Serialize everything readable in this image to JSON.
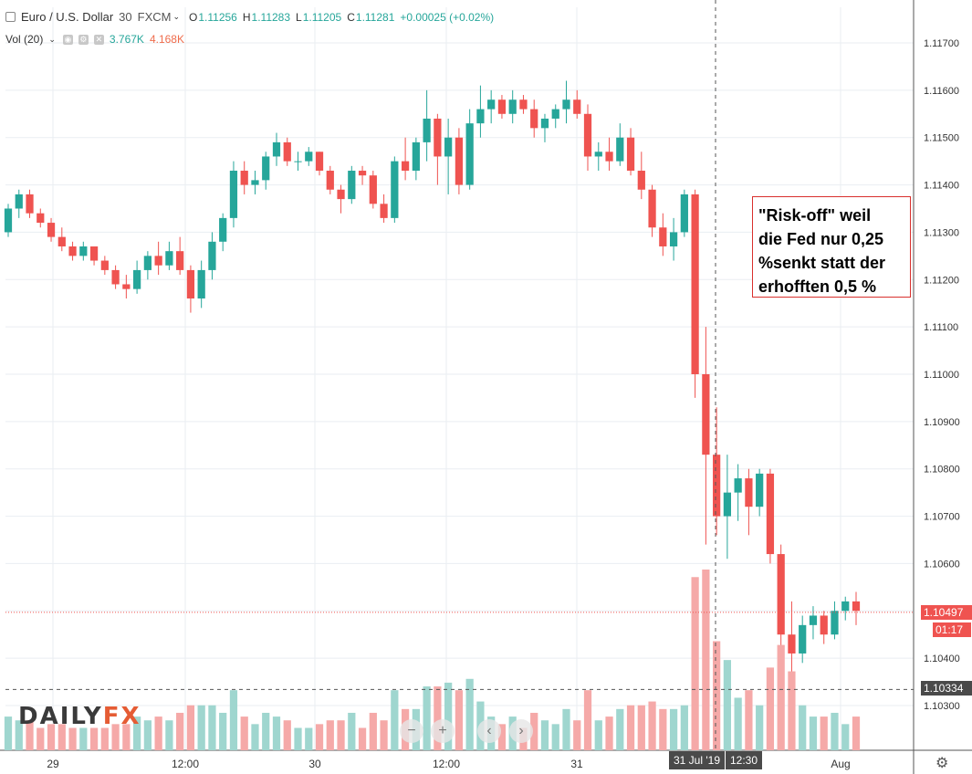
{
  "legend": {
    "symbol": "Euro / U.S. Dollar",
    "interval": "30",
    "source": "FXCM",
    "o_label": "O",
    "o_value": "1.11256",
    "h_label": "H",
    "h_value": "1.11283",
    "l_label": "L",
    "l_value": "1.11205",
    "c_label": "C",
    "c_value": "1.11281",
    "change": "+0.00025 (+0.02%)",
    "vol_label": "Vol (20)",
    "vol_value1": "3.767K",
    "vol_value2": "4.168K"
  },
  "annotation": {
    "text": "\"Risk-off\" weil\ndie Fed nur 0,25\n%senkt statt der\nerhofften 0,5 %"
  },
  "logo": {
    "part1": "DAILY",
    "part2": "FX"
  },
  "current_price_tag": "1.10497",
  "countdown_tag": "01:17",
  "crosshair_price_tag": "1.10334",
  "crosshair_date_tag": "31 Jul '19",
  "crosshair_time_tag": "12:30",
  "colors": {
    "up": "#26a69a",
    "down": "#ef5350",
    "vol_up": "#9fd6cf",
    "vol_down": "#f5a9a8",
    "grid": "#eaeef2",
    "annotation_border": "#d9302d"
  },
  "chart_data": {
    "type": "candlestick",
    "title": "Euro / U.S. Dollar",
    "ylim": [
      1.1025,
      1.1175
    ],
    "y_ticks": [
      "1.11700",
      "1.11600",
      "1.11500",
      "1.11400",
      "1.11300",
      "1.11200",
      "1.11100",
      "1.11000",
      "1.10900",
      "1.10800",
      "1.10700",
      "1.10600",
      "1.10500",
      "1.10400",
      "1.10300"
    ],
    "x_ticks": [
      "29",
      "12:00",
      "30",
      "12:00",
      "31",
      "Aug"
    ],
    "grid": true,
    "candles": [
      [
        1.113,
        1.1136,
        1.1129,
        1.1135
      ],
      [
        1.1135,
        1.1139,
        1.1133,
        1.1138
      ],
      [
        1.1138,
        1.1139,
        1.1133,
        1.1134
      ],
      [
        1.1134,
        1.1135,
        1.1131,
        1.1132
      ],
      [
        1.1132,
        1.1133,
        1.1128,
        1.1129
      ],
      [
        1.1129,
        1.1131,
        1.1126,
        1.1127
      ],
      [
        1.1127,
        1.1128,
        1.1124,
        1.1125
      ],
      [
        1.1125,
        1.1128,
        1.1124,
        1.1127
      ],
      [
        1.1127,
        1.1127,
        1.1123,
        1.1124
      ],
      [
        1.1124,
        1.1125,
        1.1121,
        1.1122
      ],
      [
        1.1122,
        1.1123,
        1.1118,
        1.1119
      ],
      [
        1.1119,
        1.1121,
        1.1116,
        1.1118
      ],
      [
        1.1118,
        1.1124,
        1.1117,
        1.1122
      ],
      [
        1.1122,
        1.1126,
        1.112,
        1.1125
      ],
      [
        1.1125,
        1.1128,
        1.1121,
        1.1123
      ],
      [
        1.1123,
        1.1128,
        1.1122,
        1.1126
      ],
      [
        1.1126,
        1.1129,
        1.1121,
        1.1122
      ],
      [
        1.1122,
        1.1123,
        1.1113,
        1.1116
      ],
      [
        1.1116,
        1.1124,
        1.1114,
        1.1122
      ],
      [
        1.1122,
        1.113,
        1.112,
        1.1128
      ],
      [
        1.1128,
        1.1134,
        1.1126,
        1.1133
      ],
      [
        1.1133,
        1.1145,
        1.1131,
        1.1143
      ],
      [
        1.1143,
        1.1145,
        1.1138,
        1.114
      ],
      [
        1.114,
        1.1143,
        1.1138,
        1.1141
      ],
      [
        1.1141,
        1.1147,
        1.1139,
        1.1146
      ],
      [
        1.1146,
        1.1151,
        1.1144,
        1.1149
      ],
      [
        1.1149,
        1.115,
        1.1144,
        1.1145
      ],
      [
        1.1145,
        1.1147,
        1.1143,
        1.1145
      ],
      [
        1.1145,
        1.1148,
        1.1144,
        1.1147
      ],
      [
        1.1147,
        1.1147,
        1.1142,
        1.1143
      ],
      [
        1.1143,
        1.1144,
        1.1138,
        1.1139
      ],
      [
        1.1139,
        1.114,
        1.1134,
        1.1137
      ],
      [
        1.1137,
        1.1144,
        1.1136,
        1.1143
      ],
      [
        1.1143,
        1.1144,
        1.114,
        1.1142
      ],
      [
        1.1142,
        1.1143,
        1.1135,
        1.1136
      ],
      [
        1.1136,
        1.1138,
        1.1132,
        1.1133
      ],
      [
        1.1133,
        1.1146,
        1.1132,
        1.1145
      ],
      [
        1.1145,
        1.115,
        1.1141,
        1.1143
      ],
      [
        1.1143,
        1.115,
        1.1141,
        1.1149
      ],
      [
        1.1149,
        1.116,
        1.1145,
        1.1154
      ],
      [
        1.1154,
        1.1155,
        1.114,
        1.1146
      ],
      [
        1.1146,
        1.1154,
        1.1138,
        1.115
      ],
      [
        1.115,
        1.1152,
        1.1138,
        1.114
      ],
      [
        1.114,
        1.1156,
        1.1139,
        1.1153
      ],
      [
        1.1153,
        1.1161,
        1.115,
        1.1156
      ],
      [
        1.1156,
        1.116,
        1.1153,
        1.1158
      ],
      [
        1.1158,
        1.1159,
        1.1154,
        1.1155
      ],
      [
        1.1155,
        1.116,
        1.1153,
        1.1158
      ],
      [
        1.1158,
        1.1159,
        1.1155,
        1.1156
      ],
      [
        1.1156,
        1.1158,
        1.115,
        1.1152
      ],
      [
        1.1152,
        1.1155,
        1.1149,
        1.1154
      ],
      [
        1.1154,
        1.1157,
        1.1152,
        1.1156
      ],
      [
        1.1156,
        1.1162,
        1.1153,
        1.1158
      ],
      [
        1.1158,
        1.116,
        1.1154,
        1.1155
      ],
      [
        1.1155,
        1.1157,
        1.1143,
        1.1146
      ],
      [
        1.1146,
        1.1149,
        1.1143,
        1.1147
      ],
      [
        1.1147,
        1.115,
        1.1143,
        1.1145
      ],
      [
        1.1145,
        1.1153,
        1.1144,
        1.115
      ],
      [
        1.115,
        1.1152,
        1.1142,
        1.1143
      ],
      [
        1.1143,
        1.1147,
        1.1137,
        1.1139
      ],
      [
        1.1139,
        1.114,
        1.1129,
        1.1131
      ],
      [
        1.1131,
        1.1134,
        1.1125,
        1.1127
      ],
      [
        1.1127,
        1.1133,
        1.1124,
        1.113
      ],
      [
        1.113,
        1.1139,
        1.1129,
        1.1138
      ],
      [
        1.1138,
        1.1139,
        1.1095,
        1.11
      ],
      [
        1.11,
        1.111,
        1.1064,
        1.1083
      ],
      [
        1.1083,
        1.1093,
        1.1066,
        1.107
      ],
      [
        1.107,
        1.1083,
        1.1061,
        1.1075
      ],
      [
        1.1075,
        1.1081,
        1.1069,
        1.1078
      ],
      [
        1.1078,
        1.108,
        1.1066,
        1.1072
      ],
      [
        1.1072,
        1.108,
        1.107,
        1.1079
      ],
      [
        1.1079,
        1.108,
        1.106,
        1.1062
      ],
      [
        1.1062,
        1.1064,
        1.1038,
        1.1045
      ],
      [
        1.1045,
        1.1052,
        1.1033,
        1.1041
      ],
      [
        1.1041,
        1.1049,
        1.1039,
        1.1047
      ],
      [
        1.1047,
        1.1051,
        1.1044,
        1.1049
      ],
      [
        1.1049,
        1.105,
        1.1043,
        1.1045
      ],
      [
        1.1045,
        1.1052,
        1.1044,
        1.105
      ],
      [
        1.105,
        1.1053,
        1.1048,
        1.1052
      ],
      [
        1.1052,
        1.1054,
        1.1047,
        1.105
      ]
    ],
    "volume_scale_max": 6000
  }
}
